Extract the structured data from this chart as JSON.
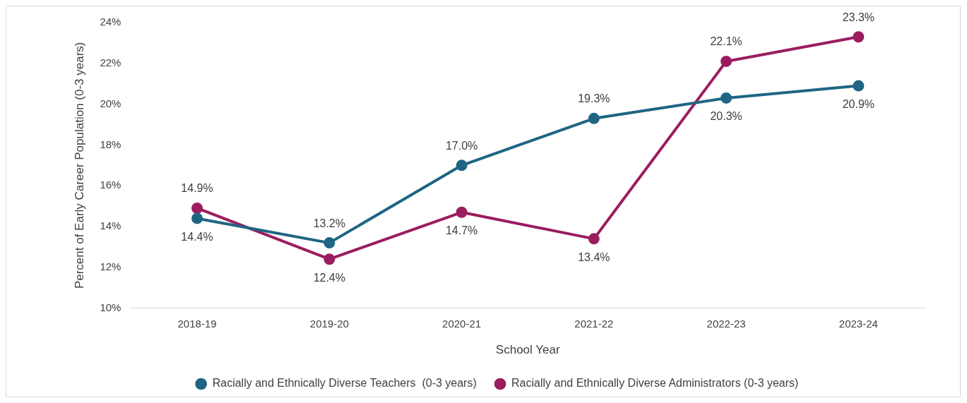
{
  "chart_data": {
    "type": "line",
    "xlabel": "School Year",
    "ylabel": "Percent of Early Career Population (0-3 years)",
    "categories": [
      "2018-19",
      "2019-20",
      "2020-21",
      "2021-22",
      "2022-23",
      "2023-24"
    ],
    "series": [
      {
        "name": "Racially and Ethnically Diverse Teachers  (0-3 years)",
        "color": "#1f6583",
        "values": [
          14.4,
          13.2,
          17.0,
          19.3,
          20.3,
          20.9
        ],
        "value_labels": [
          "14.4%",
          "13.2%",
          "17.0%",
          "19.3%",
          "20.3%",
          "20.9%"
        ]
      },
      {
        "name": "Racially and Ethnically Diverse Administrators (0-3 years)",
        "color": "#9b1d5f",
        "values": [
          14.9,
          12.4,
          14.7,
          13.4,
          22.1,
          23.3
        ],
        "value_labels": [
          "14.9%",
          "12.4%",
          "14.7%",
          "13.4%",
          "22.1%",
          "23.3%"
        ]
      }
    ],
    "ylim": [
      10,
      24
    ],
    "yticks": [
      {
        "value": 10,
        "label": "10%"
      },
      {
        "value": 12,
        "label": "12%"
      },
      {
        "value": 14,
        "label": "14%"
      },
      {
        "value": 16,
        "label": "16%"
      },
      {
        "value": 18,
        "label": "18%"
      },
      {
        "value": 20,
        "label": "20%"
      },
      {
        "value": 22,
        "label": "22%"
      },
      {
        "value": 24,
        "label": "24%"
      }
    ],
    "grid": false,
    "legend": "bottom",
    "marker": "circle",
    "line_style": "solid"
  }
}
